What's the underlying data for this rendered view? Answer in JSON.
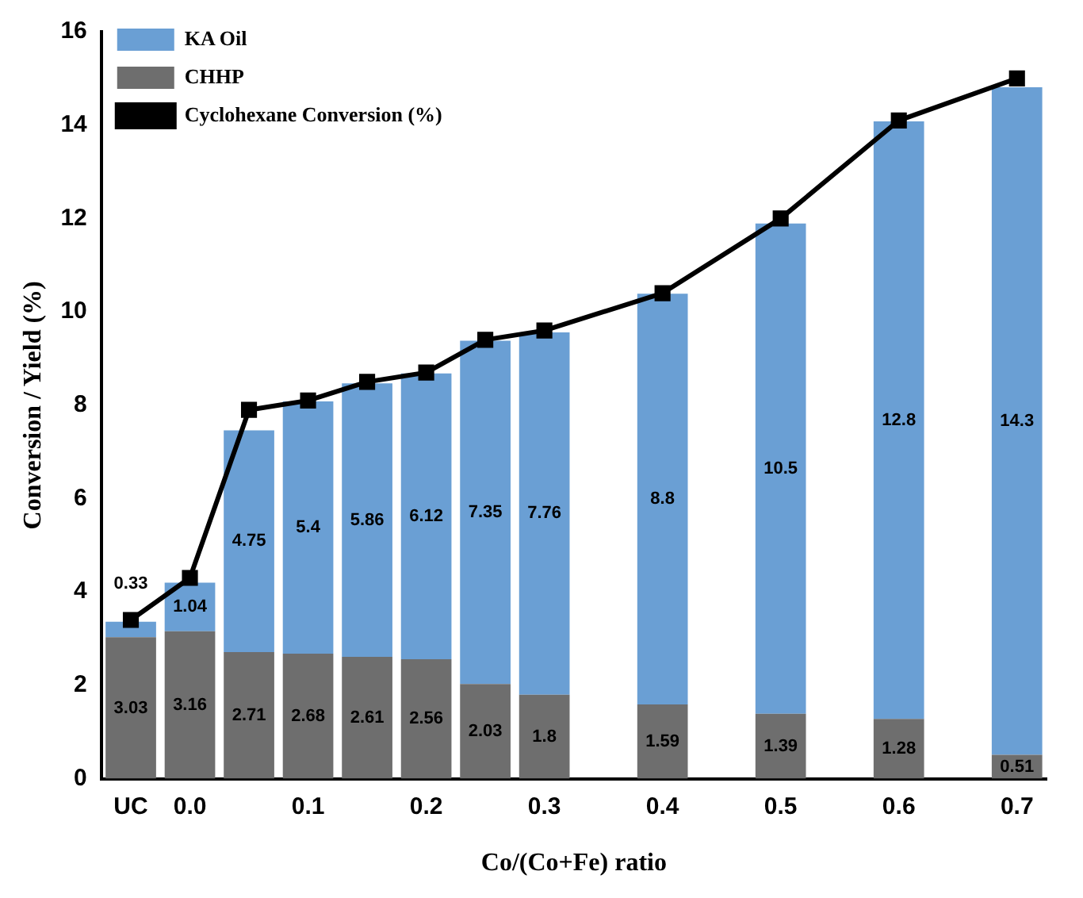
{
  "chart_data": {
    "type": "bar",
    "xlabel": "Co/(Co+Fe) ratio",
    "ylabel": "Conversion / Yield (%)",
    "categories": [
      "UC",
      "0.0",
      null,
      "0.1",
      null,
      "0.2",
      null,
      "0.3",
      null,
      "0.4",
      null,
      "0.5",
      null,
      "0.6",
      null,
      "0.7"
    ],
    "series": [
      {
        "name": "CHHP",
        "type": "bar",
        "color": "#6e6e6e",
        "values": [
          3.03,
          3.16,
          2.71,
          2.68,
          2.61,
          2.56,
          2.03,
          1.8,
          null,
          1.59,
          null,
          1.39,
          null,
          1.28,
          null,
          0.51
        ],
        "value_labels": [
          "3.03",
          "3.16",
          "2.71",
          "2.68",
          "2.61",
          "2.56",
          "2.03",
          "1.8",
          null,
          "1.59",
          null,
          "1.39",
          null,
          "1.28",
          null,
          "0.51"
        ]
      },
      {
        "name": "KA Oil",
        "type": "bar",
        "color": "#6a9fd4",
        "values": [
          0.33,
          1.04,
          4.75,
          5.4,
          5.86,
          6.12,
          7.35,
          7.76,
          null,
          8.8,
          null,
          10.5,
          null,
          12.8,
          null,
          14.3
        ],
        "value_labels": [
          "0.33",
          "1.04",
          "4.75",
          "5.4",
          "5.86",
          "6.12",
          "7.35",
          "7.76",
          null,
          "8.8",
          null,
          "10.5",
          null,
          "12.8",
          null,
          "14.3"
        ]
      },
      {
        "name": "Cyclohexane Conversion (%)",
        "type": "line",
        "color": "#000000",
        "values": [
          3.4,
          4.3,
          7.9,
          8.1,
          8.5,
          8.7,
          9.4,
          9.6,
          null,
          10.4,
          null,
          12.0,
          null,
          14.1,
          null,
          15.0
        ]
      }
    ],
    "stacked": true,
    "ylim": [
      0,
      16
    ],
    "yticks": [
      0,
      2,
      4,
      6,
      8,
      10,
      12,
      14,
      16
    ],
    "grid": false,
    "legend": "top left",
    "marker": "square",
    "line_style": "solid"
  }
}
